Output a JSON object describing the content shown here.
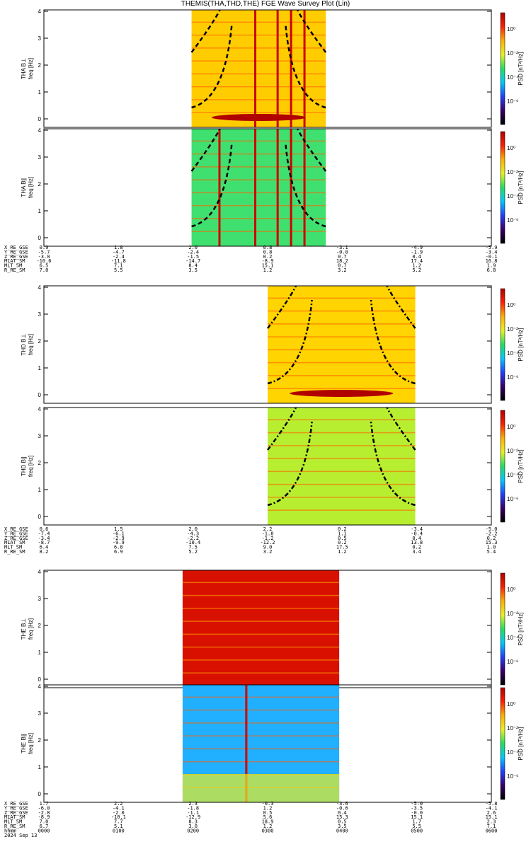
{
  "title": "THEMIS(THA,THD,THE) FGE Wave Survey Plot (Lin)",
  "colors": {
    "bar": [
      "#000000",
      "#3a006a",
      "#2040ff",
      "#00c8ff",
      "#20e060",
      "#e8f020",
      "#ffb000",
      "#ff2000",
      "#b00000"
    ]
  },
  "colorbar": {
    "label": "PSD [nT²/Hz]",
    "ticks": [
      "10⁰",
      "10⁻²",
      "10⁻⁴",
      "10⁻⁶"
    ]
  },
  "freq_axis": {
    "label": "freq [Hz]",
    "ticks": [
      "0",
      "1",
      "2",
      "3",
      "4"
    ]
  },
  "panels": [
    {
      "name": "THA B⊥",
      "data_start": 0.33,
      "data_end": 0.63,
      "bg": "#ffcc00",
      "band": true,
      "curve": "dash",
      "lines": [
        0.47,
        0.52,
        0.55,
        0.58
      ]
    },
    {
      "name": "THA B∥",
      "data_start": 0.33,
      "data_end": 0.63,
      "bg": "#40e070",
      "band": false,
      "curve": "dash",
      "lines": [
        0.39,
        0.47,
        0.52,
        0.55,
        0.58
      ]
    },
    {
      "name": "THD B⊥",
      "data_start": 0.5,
      "data_end": 0.83,
      "bg": "#ffd400",
      "band": true,
      "curve": "dashdot",
      "lines": []
    },
    {
      "name": "THD B∥",
      "data_start": 0.5,
      "data_end": 0.83,
      "bg": "#b8ee30",
      "band": false,
      "curve": "dashdot",
      "lines": []
    },
    {
      "name": "THE B⊥",
      "data_start": 0.31,
      "data_end": 0.66,
      "bg": "#d81000",
      "band": false,
      "curve": "none",
      "lines": []
    },
    {
      "name": "THE B∥",
      "data_start": 0.31,
      "data_end": 0.66,
      "bg": "#20b0ff",
      "band": false,
      "curve": "none",
      "lines": [
        0.45
      ]
    }
  ],
  "ephemeris": [
    {
      "labels": [
        "X_RE_GSE",
        "Y_RE_GSE",
        "Z_RE_GSE",
        "MLAT_SM",
        "MLT_SM",
        "R_RE_SM"
      ],
      "cols": [
        [
          "0.9",
          "-5.7",
          "-3.0",
          "-10.6",
          "6.5",
          "7.0"
        ],
        [
          "1.8",
          "-4.7",
          "-2.4",
          "-11.8",
          "7.1",
          "5.5"
        ],
        [
          "2.0",
          "-2.4",
          "-1.5",
          "-14.7",
          "8.4",
          "3.5"
        ],
        [
          "0.8",
          "0.8",
          "0.2",
          "-8.9",
          "15.1",
          "1.2"
        ],
        [
          "-3.1",
          "-0.0",
          "0.7",
          "18.2",
          "0.7",
          "3.2"
        ],
        [
          "-4.9",
          "-1.9",
          "0.4",
          "17.4",
          "1.2",
          "5.2"
        ],
        [
          "-5.9",
          "-3.4",
          "-0.1",
          "16.8",
          "1.9",
          "6.8"
        ]
      ]
    },
    {
      "labels": [
        "X_RE_GSE",
        "Y_RE_GSE",
        "Z_RE_GSE",
        "MLAT_SM",
        "MLT_SM",
        "R_RE_SM"
      ],
      "cols": [
        [
          "0.6",
          "-7.4",
          "-3.4",
          "-8.7",
          "6.4",
          "8.2"
        ],
        [
          "1.5",
          "-6.1",
          "-2.9",
          "-9.9",
          "6.8",
          "6.9"
        ],
        [
          "2.0",
          "-4.3",
          "-2.2",
          "-10.4",
          "7.5",
          "5.2"
        ],
        [
          "2.2",
          "-1.8",
          "-1.2",
          "-12.2",
          "9.0",
          "3.2"
        ],
        [
          "0.2",
          "1.1",
          "0.5",
          "0.2",
          "17.5",
          "1.2"
        ],
        [
          "-3.4",
          "-0.4",
          "0.4",
          "13.8",
          "0.2",
          "3.4"
        ],
        [
          "-5.0",
          "-2.2",
          "0.2",
          "15.3",
          "1.0",
          "5.4"
        ]
      ]
    },
    {
      "labels": [
        "X_RE_GSE",
        "Y_RE_GSE",
        "Z_RE_GSE",
        "MLAT_SM",
        "MLT_SM",
        "R_RE_SM",
        "hhmm",
        "2024 Sep 13"
      ],
      "cols": [
        [
          "1.7",
          "-6.0",
          "-2.8",
          "-8.9",
          "7.0",
          "6.7",
          "0000",
          ""
        ],
        [
          "2.2",
          "-4.1",
          "-2.0",
          "-10.1",
          "7.7",
          "5.1",
          "0100",
          ""
        ],
        [
          "2.3",
          "-1.8",
          "-1.1",
          "-12.9",
          "8.3",
          "3.0",
          "0200",
          ""
        ],
        [
          "-0.3",
          "1.2",
          "0.5",
          "5.6",
          "18.9",
          "1.2",
          "0300",
          ""
        ],
        [
          "-3.6",
          "-0.6",
          "0.4",
          "15.3",
          "0.5",
          "3.5",
          "0400",
          ""
        ],
        [
          "-5.0",
          "-3.5",
          "-0.0",
          "15.1",
          "1.7",
          "5.5",
          "0500",
          ""
        ],
        [
          "-5.8",
          "-4.1",
          "2.6",
          "15.1",
          "2.3",
          "7.1",
          "0600",
          ""
        ]
      ]
    }
  ]
}
